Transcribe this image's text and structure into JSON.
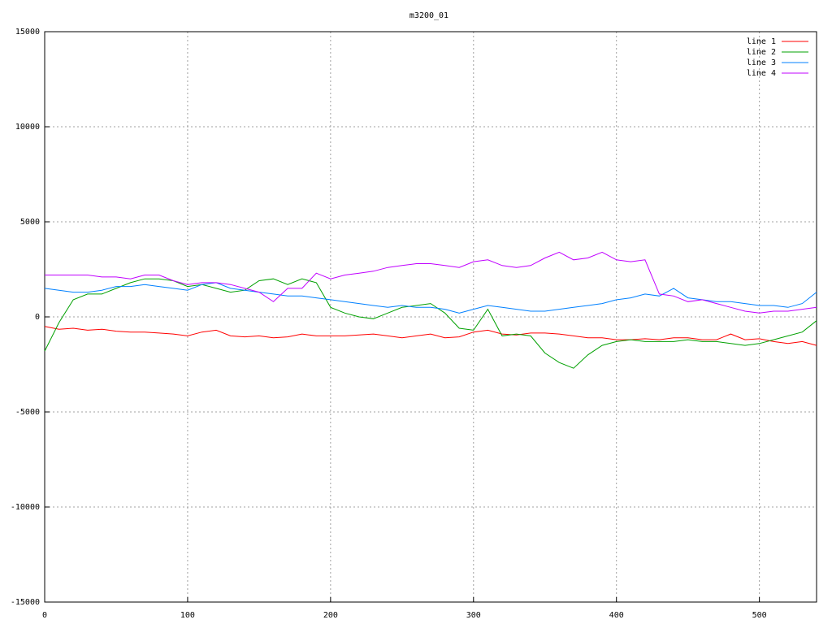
{
  "chart_data": {
    "type": "line",
    "title": "m3200_01",
    "x": [
      0,
      10,
      20,
      30,
      40,
      50,
      60,
      70,
      80,
      90,
      100,
      110,
      120,
      130,
      140,
      150,
      160,
      170,
      180,
      190,
      200,
      210,
      220,
      230,
      240,
      250,
      260,
      270,
      280,
      290,
      300,
      310,
      320,
      330,
      340,
      350,
      360,
      370,
      380,
      390,
      400,
      410,
      420,
      430,
      440,
      450,
      460,
      470,
      480,
      490,
      500,
      510,
      520,
      530,
      540
    ],
    "series": [
      {
        "name": "line 1",
        "color": "#ff0000",
        "values": [
          -500,
          -650,
          -600,
          -700,
          -650,
          -750,
          -800,
          -800,
          -850,
          -900,
          -1000,
          -800,
          -700,
          -1000,
          -1050,
          -1000,
          -1100,
          -1050,
          -900,
          -1000,
          -1000,
          -1000,
          -950,
          -900,
          -1000,
          -1100,
          -1000,
          -900,
          -1100,
          -1050,
          -800,
          -700,
          -900,
          -950,
          -850,
          -850,
          -900,
          -1000,
          -1100,
          -1100,
          -1200,
          -1200,
          -1150,
          -1200,
          -1100,
          -1100,
          -1200,
          -1200,
          -900,
          -1200,
          -1150,
          -1300,
          -1400,
          -1300,
          -1500
        ]
      },
      {
        "name": "line 2",
        "color": "#00a000",
        "values": [
          -1800,
          -300,
          900,
          1200,
          1200,
          1500,
          1800,
          2000,
          2000,
          1900,
          1600,
          1700,
          1500,
          1300,
          1400,
          1900,
          2000,
          1700,
          2000,
          1800,
          500,
          200,
          0,
          -100,
          200,
          500,
          600,
          700,
          200,
          -600,
          -700,
          400,
          -1000,
          -900,
          -1000,
          -1900,
          -2400,
          -2700,
          -2000,
          -1500,
          -1300,
          -1200,
          -1300,
          -1300,
          -1300,
          -1200,
          -1300,
          -1300,
          -1400,
          -1500,
          -1400,
          -1200,
          -1000,
          -800,
          -200
        ]
      },
      {
        "name": "line 3",
        "color": "#0080ff",
        "values": [
          1500,
          1400,
          1300,
          1300,
          1400,
          1600,
          1600,
          1700,
          1600,
          1500,
          1400,
          1700,
          1800,
          1500,
          1400,
          1300,
          1200,
          1100,
          1100,
          1000,
          900,
          800,
          700,
          600,
          500,
          600,
          500,
          500,
          400,
          200,
          400,
          600,
          500,
          400,
          300,
          300,
          400,
          500,
          600,
          700,
          900,
          1000,
          1200,
          1100,
          1500,
          1000,
          900,
          800,
          800,
          700,
          600,
          600,
          500,
          700,
          1300
        ]
      },
      {
        "name": "line 4",
        "color": "#c000ff",
        "values": [
          2200,
          2200,
          2200,
          2200,
          2100,
          2100,
          2000,
          2200,
          2200,
          1900,
          1700,
          1800,
          1800,
          1700,
          1500,
          1300,
          800,
          1500,
          1500,
          2300,
          2000,
          2200,
          2300,
          2400,
          2600,
          2700,
          2800,
          2800,
          2700,
          2600,
          2900,
          3000,
          2700,
          2600,
          2700,
          3100,
          3400,
          3000,
          3100,
          3400,
          3000,
          2900,
          3000,
          1200,
          1100,
          800,
          900,
          700,
          500,
          300,
          200,
          300,
          300,
          400,
          500
        ]
      }
    ],
    "xlim": [
      0,
      540
    ],
    "ylim": [
      -15000,
      15000
    ],
    "xticks": [
      0,
      100,
      200,
      300,
      400,
      500
    ],
    "yticks": [
      -15000,
      -10000,
      -5000,
      0,
      5000,
      10000,
      15000
    ],
    "grid": true,
    "legend": "top-right"
  }
}
